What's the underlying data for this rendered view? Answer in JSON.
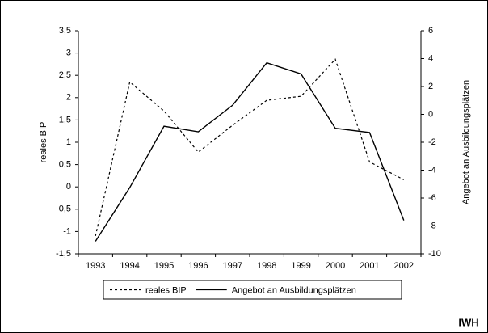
{
  "chart_data": {
    "type": "line",
    "categories": [
      "1993",
      "1994",
      "1995",
      "1996",
      "1997",
      "1998",
      "1999",
      "2000",
      "2001",
      "2002"
    ],
    "series": [
      {
        "name": "reales BIP",
        "color": "#000000",
        "linestyle": "dotted",
        "axis": "y",
        "values": [
          -1.1,
          2.35,
          1.7,
          0.78,
          1.38,
          1.94,
          2.03,
          2.86,
          0.56,
          0.16
        ]
      },
      {
        "name": "Angebot an Ausbildungsplätzen",
        "color": "#000000",
        "linestyle": "solid",
        "axis": "y2",
        "values": [
          -9.1,
          -5.25,
          -0.85,
          -1.25,
          0.65,
          3.7,
          2.9,
          -1.0,
          -1.3,
          -7.6
        ]
      }
    ],
    "ylabel": "reales BIP",
    "y2label": "Angebot an Ausbildungsplätzen",
    "ylim": [
      -1.5,
      3.5
    ],
    "yticks": [
      {
        "value": -1.5,
        "label": "-1,5"
      },
      -1,
      {
        "value": -0.5,
        "label": "-0,5"
      },
      0,
      {
        "value": 0.5,
        "label": "0,5"
      },
      1,
      {
        "value": 1.5,
        "label": "1,5"
      },
      2,
      {
        "value": 2.5,
        "label": "2,5"
      },
      3,
      {
        "value": 3.5,
        "label": "3,5"
      }
    ],
    "y2lim": [
      -10,
      6
    ],
    "y2ticks": [
      -10,
      -8,
      -6,
      -4,
      -2,
      0,
      2,
      4,
      6
    ],
    "grid": false,
    "legend": "bottom",
    "source": "IWH"
  }
}
